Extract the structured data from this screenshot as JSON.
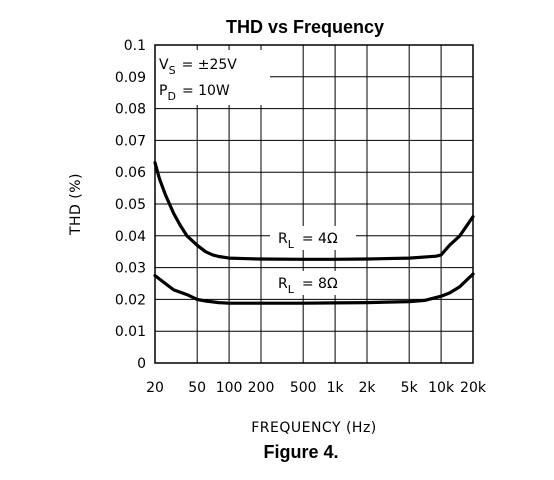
{
  "chart_data": {
    "type": "line",
    "title": "THD vs Frequency",
    "xlabel": "FREQUENCY (Hz)",
    "ylabel": "THD (%)",
    "x_scale": "log",
    "xlim": [
      20,
      20000
    ],
    "ylim": [
      0,
      0.1
    ],
    "grid": true,
    "x_ticks": [
      {
        "value": 20,
        "label": "20"
      },
      {
        "value": 50,
        "label": "50"
      },
      {
        "value": 100,
        "label": "100"
      },
      {
        "value": 200,
        "label": "200"
      },
      {
        "value": 500,
        "label": "500"
      },
      {
        "value": 1000,
        "label": "1k"
      },
      {
        "value": 2000,
        "label": "2k"
      },
      {
        "value": 5000,
        "label": "5k"
      },
      {
        "value": 10000,
        "label": "10k"
      },
      {
        "value": 20000,
        "label": "20k"
      }
    ],
    "y_ticks": [
      {
        "value": 0,
        "label": "0"
      },
      {
        "value": 0.01,
        "label": "0.01"
      },
      {
        "value": 0.02,
        "label": "0.02"
      },
      {
        "value": 0.03,
        "label": "0.03"
      },
      {
        "value": 0.04,
        "label": "0.04"
      },
      {
        "value": 0.05,
        "label": "0.05"
      },
      {
        "value": 0.06,
        "label": "0.06"
      },
      {
        "value": 0.07,
        "label": "0.07"
      },
      {
        "value": 0.08,
        "label": "0.08"
      },
      {
        "value": 0.09,
        "label": "0.09"
      },
      {
        "value": 0.1,
        "label": "0.1"
      }
    ],
    "conditions": [
      "V_S = ±25V",
      "P_D = 10W"
    ],
    "series": [
      {
        "name": "R_L = 4Ω",
        "x": [
          20,
          22,
          25,
          30,
          35,
          40,
          50,
          60,
          70,
          80,
          100,
          150,
          200,
          500,
          1000,
          2000,
          5000,
          9000,
          10000,
          12000,
          15000,
          20000
        ],
        "y": [
          0.063,
          0.058,
          0.053,
          0.047,
          0.043,
          0.04,
          0.037,
          0.035,
          0.034,
          0.0335,
          0.033,
          0.0328,
          0.0327,
          0.0326,
          0.0326,
          0.0327,
          0.033,
          0.0336,
          0.034,
          0.037,
          0.04,
          0.046
        ]
      },
      {
        "name": "R_L = 8Ω",
        "x": [
          20,
          25,
          30,
          40,
          50,
          60,
          80,
          100,
          150,
          200,
          500,
          1000,
          2000,
          5000,
          7000,
          10000,
          12000,
          15000,
          20000
        ],
        "y": [
          0.0275,
          0.025,
          0.023,
          0.0215,
          0.02,
          0.0195,
          0.019,
          0.0188,
          0.0188,
          0.0188,
          0.0188,
          0.0189,
          0.019,
          0.0193,
          0.0197,
          0.021,
          0.022,
          0.024,
          0.028
        ]
      }
    ]
  },
  "annotations": {
    "vs_label": "V",
    "vs_sub": "S",
    "vs_value": "= ±25V",
    "pd_label": "P",
    "pd_sub": "D",
    "pd_value": "= 10W",
    "rl4_label": "R",
    "rl4_sub": "L",
    "rl4_value": "= 4Ω",
    "rl8_label": "R",
    "rl8_sub": "L",
    "rl8_value": "= 8Ω"
  },
  "caption": "Figure 4."
}
